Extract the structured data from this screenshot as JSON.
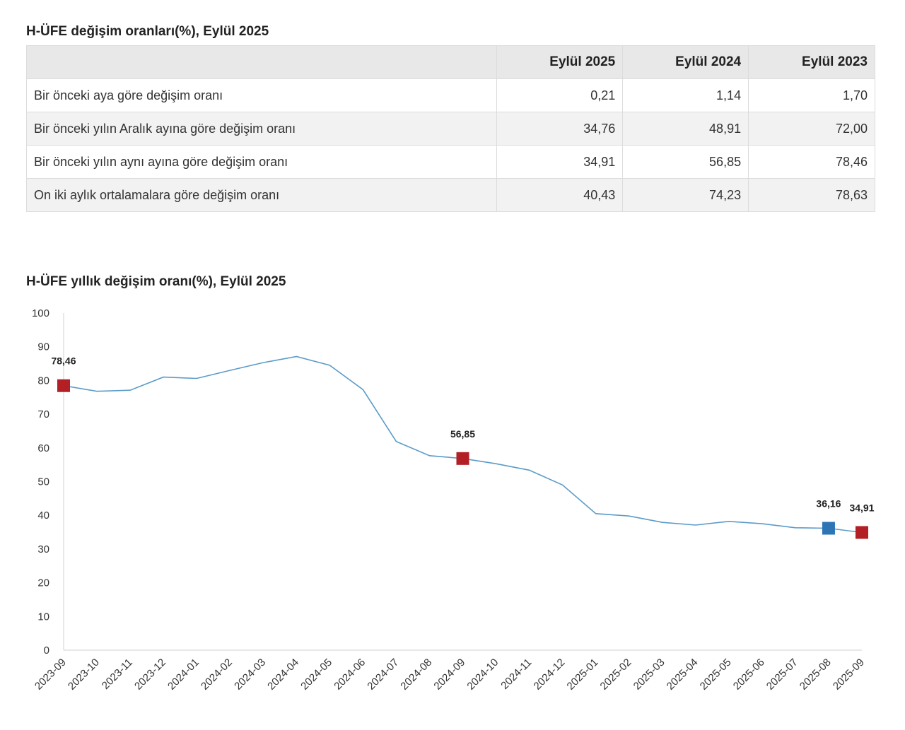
{
  "table": {
    "title": "H-ÜFE değişim oranları(%), Eylül 2025",
    "headers": [
      "",
      "Eylül 2025",
      "Eylül 2024",
      "Eylül 2023"
    ],
    "rows": [
      {
        "label": "Bir önceki aya göre değişim oranı",
        "values": [
          "0,21",
          "1,14",
          "1,70"
        ]
      },
      {
        "label": "Bir önceki yılın Aralık ayına göre değişim oranı",
        "values": [
          "34,76",
          "48,91",
          "72,00"
        ]
      },
      {
        "label": "Bir önceki yılın aynı ayına göre değişim oranı",
        "values": [
          "34,91",
          "56,85",
          "78,46"
        ]
      },
      {
        "label": "On iki aylık ortalamalara göre değişim oranı",
        "values": [
          "40,43",
          "74,23",
          "78,63"
        ]
      }
    ]
  },
  "chart_data": {
    "type": "line",
    "title": "H-ÜFE yıllık değişim oranı(%), Eylül 2025",
    "xlabel": "",
    "ylabel": "",
    "ylim": [
      0,
      100
    ],
    "yticks": [
      0,
      10,
      20,
      30,
      40,
      50,
      60,
      70,
      80,
      90,
      100
    ],
    "categories": [
      "2023-09",
      "2023-10",
      "2023-11",
      "2023-12",
      "2024-01",
      "2024-02",
      "2024-03",
      "2024-04",
      "2024-05",
      "2024-06",
      "2024-07",
      "2024-08",
      "2024-09",
      "2024-10",
      "2024-11",
      "2024-12",
      "2025-01",
      "2025-02",
      "2025-03",
      "2025-04",
      "2025-05",
      "2025-06",
      "2025-07",
      "2025-08",
      "2025-09"
    ],
    "series": [
      {
        "name": "H-ÜFE yıllık değişim oranı",
        "color": "#5b9bc8",
        "values": [
          78.46,
          76.8,
          77.1,
          81.0,
          80.6,
          83.0,
          85.3,
          87.1,
          84.5,
          77.3,
          61.9,
          57.7,
          56.85,
          55.3,
          53.4,
          49.0,
          40.5,
          39.8,
          37.9,
          37.1,
          38.2,
          37.5,
          36.3,
          36.16,
          34.91
        ]
      }
    ],
    "markers": [
      {
        "category": "2023-09",
        "value": 78.46,
        "label": "78,46",
        "color": "#b22025"
      },
      {
        "category": "2024-09",
        "value": 56.85,
        "label": "56,85",
        "color": "#b22025"
      },
      {
        "category": "2025-08",
        "value": 36.16,
        "label": "36,16",
        "color": "#2e75b6"
      },
      {
        "category": "2025-09",
        "value": 34.91,
        "label": "34,91",
        "color": "#b22025"
      }
    ]
  }
}
